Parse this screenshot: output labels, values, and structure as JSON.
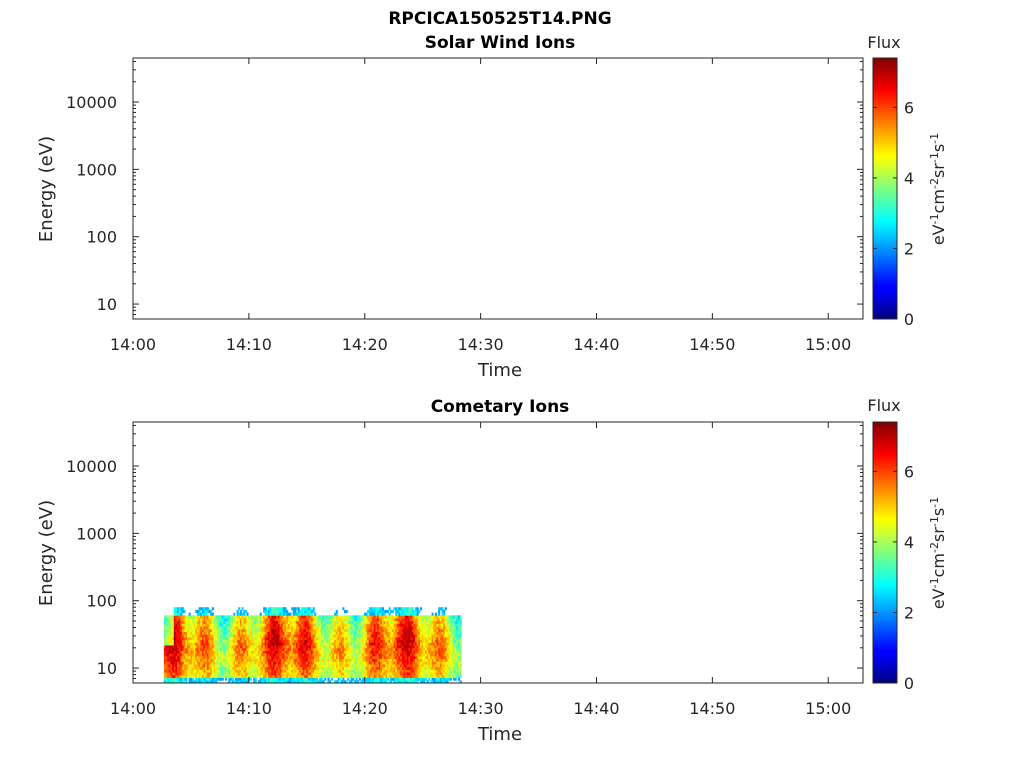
{
  "figure_title": "RPCICA150525T14.PNG",
  "chart_data": [
    {
      "type": "heatmap",
      "title": "Solar Wind Ions",
      "xlabel": "Time",
      "ylabel": "Energy (eV)",
      "yscale": "log",
      "x_ticks": [
        "14:00",
        "14:10",
        "14:20",
        "14:30",
        "14:40",
        "14:50",
        "15:00"
      ],
      "y_ticks": [
        "10",
        "100",
        "1000",
        "10000"
      ],
      "xlim": [
        "14:00",
        "15:03"
      ],
      "ylim": [
        6,
        45000
      ],
      "colorbar": {
        "title": "Flux",
        "label": "eV-1cm-2sr-1s-1",
        "ticks": [
          "0",
          "2",
          "4",
          "6"
        ],
        "range": [
          0,
          7.4
        ],
        "colormap": "jet"
      },
      "data_regions": []
    },
    {
      "type": "heatmap",
      "title": "Cometary Ions",
      "xlabel": "Time",
      "ylabel": "Energy (eV)",
      "yscale": "log",
      "x_ticks": [
        "14:00",
        "14:10",
        "14:20",
        "14:30",
        "14:40",
        "14:50",
        "15:00"
      ],
      "y_ticks": [
        "10",
        "100",
        "1000",
        "10000"
      ],
      "xlim": [
        "14:00",
        "15:03"
      ],
      "ylim": [
        6,
        45000
      ],
      "colorbar": {
        "title": "Flux",
        "label": "eV-1cm-2sr-1s-1",
        "ticks": [
          "0",
          "2",
          "4",
          "6"
        ],
        "range": [
          0,
          7.4
        ],
        "colormap": "jet"
      },
      "data_regions": [
        {
          "t_start": "14:02:40",
          "t_end": "14:28:20",
          "e_min_eV": 6,
          "e_max_eV": 80,
          "flux_min": 2,
          "flux_max": 7.2
        }
      ]
    }
  ]
}
